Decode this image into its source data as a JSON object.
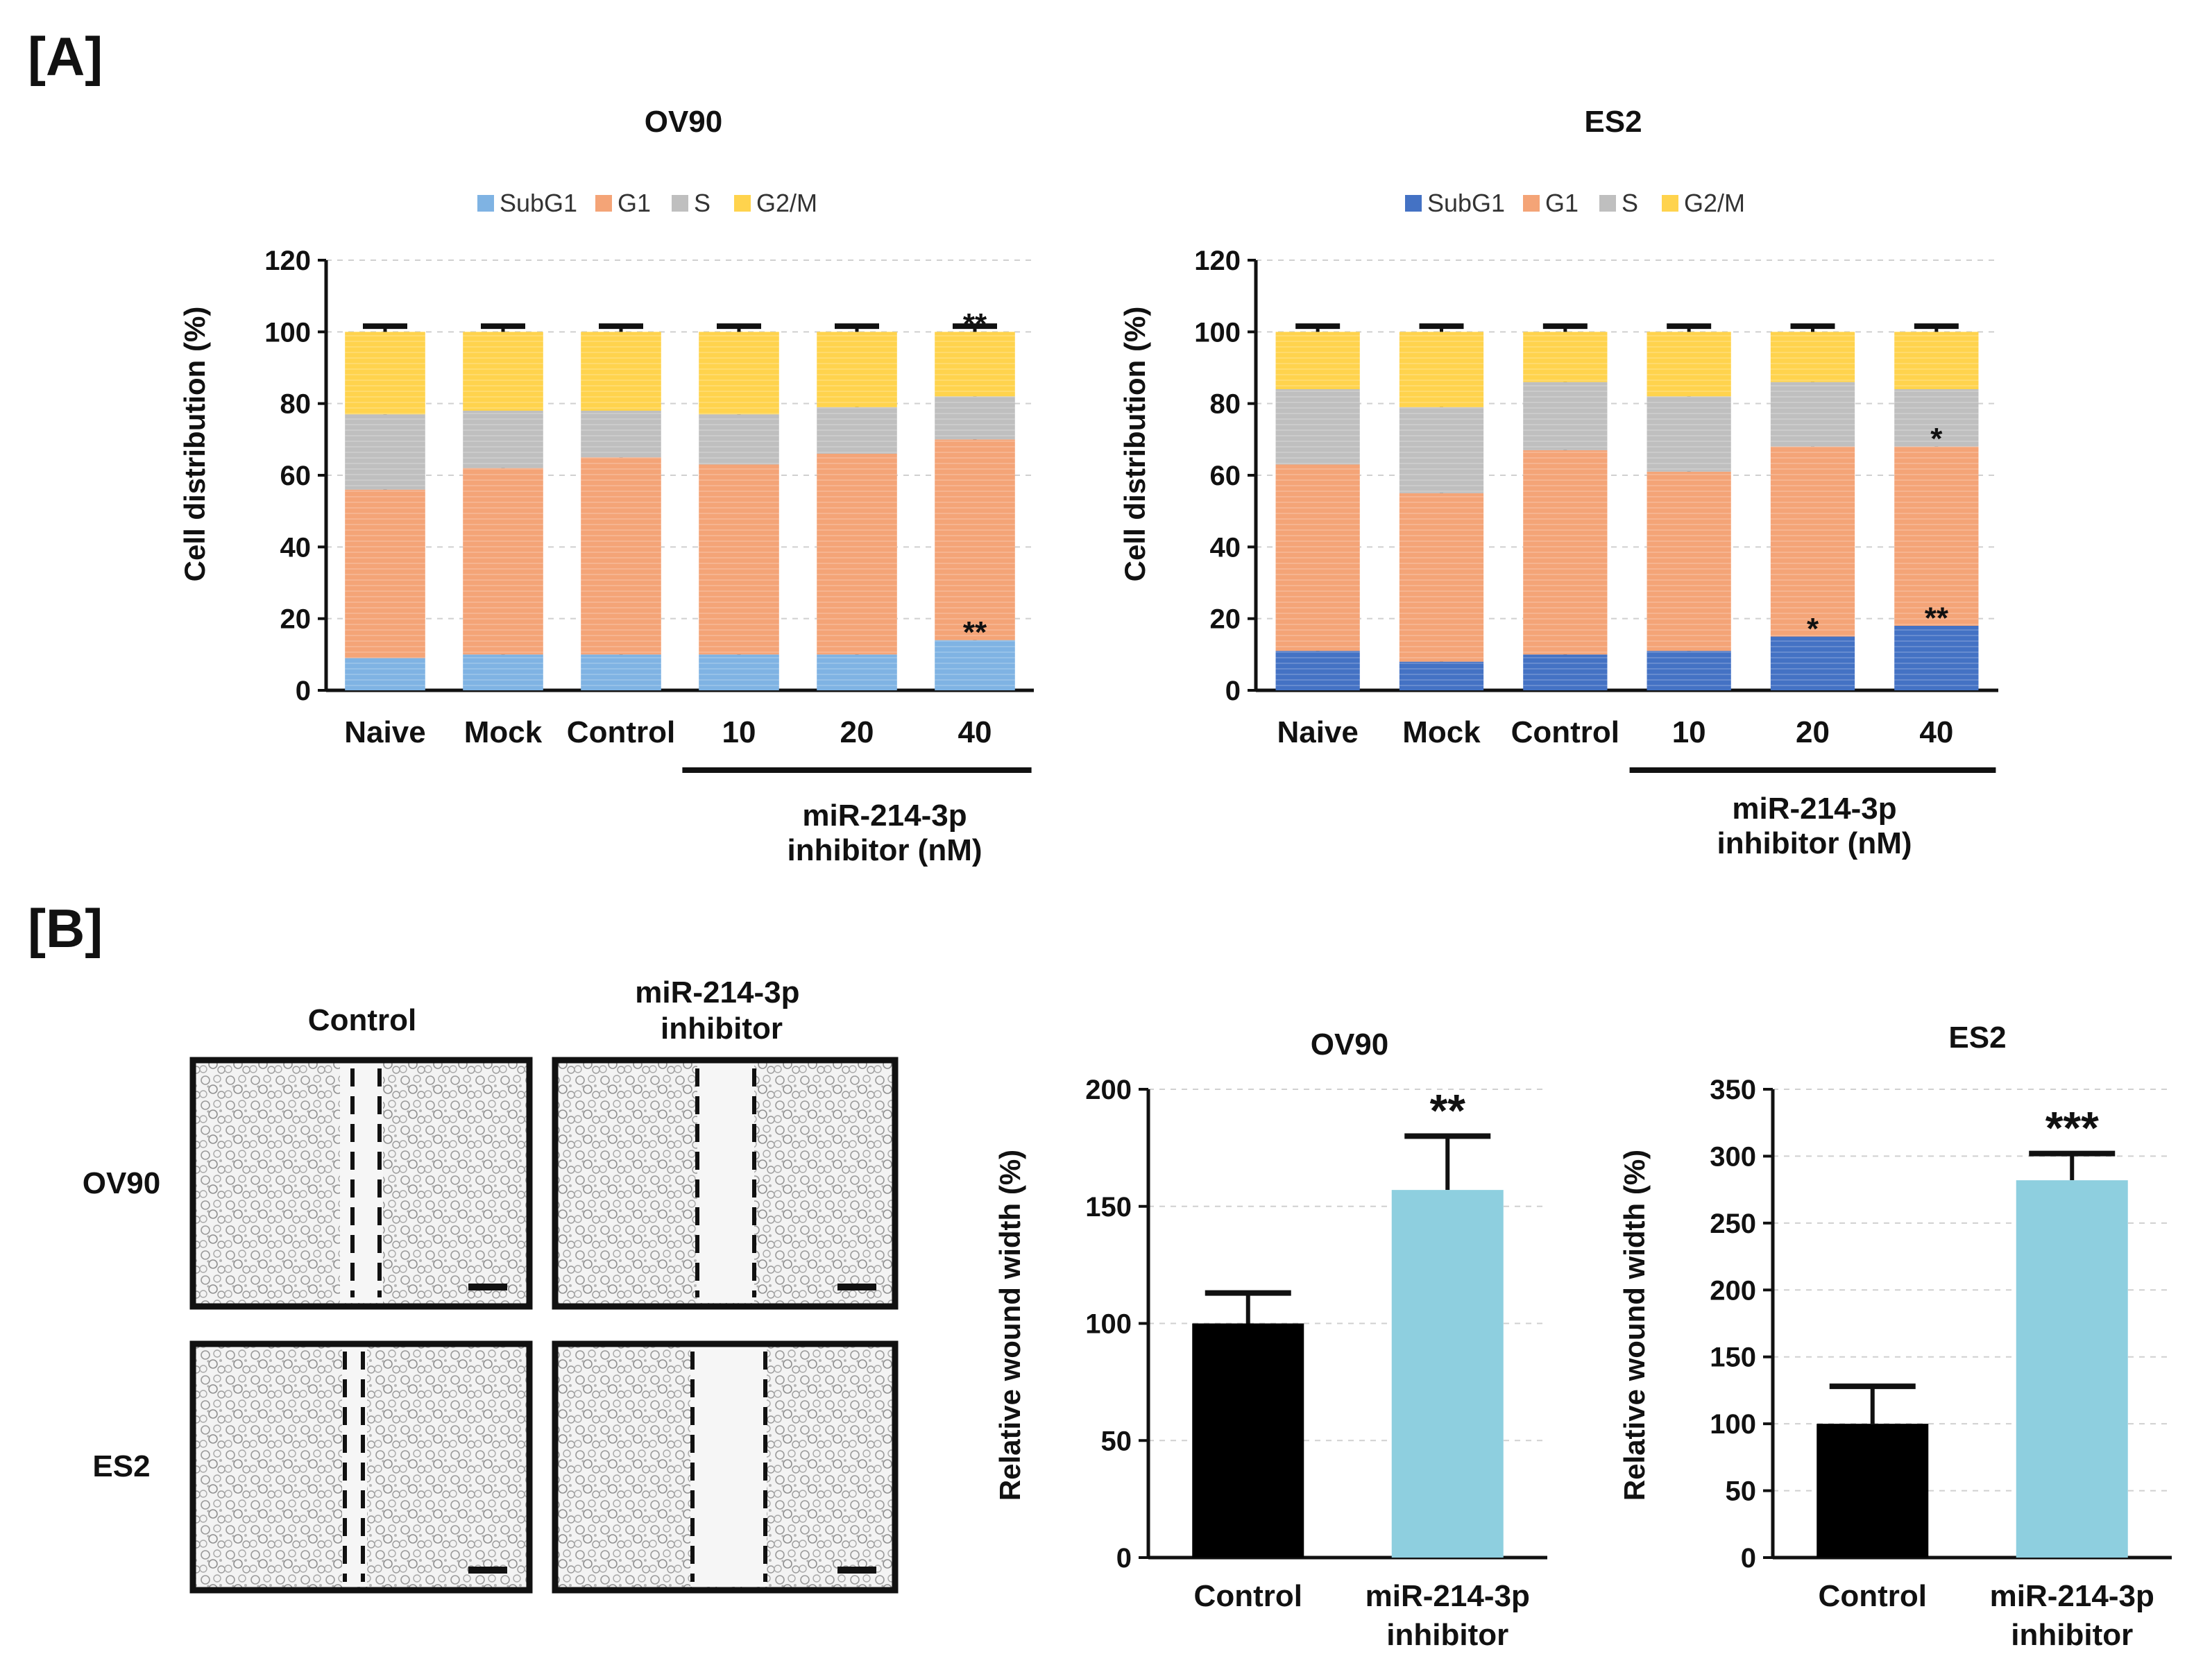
{
  "panels": {
    "A": "[A]",
    "B": "[B]"
  },
  "colors": {
    "subg1_ov90": "#7fb3e3",
    "subg1_es2": "#4472c4",
    "g1": "#f4a477",
    "s": "#bfbfbf",
    "g2m": "#ffd34d",
    "control_bar": "#000000",
    "inhibitor_bar": "#8ecfdf"
  },
  "chart_data": [
    {
      "type": "bar",
      "stacked": true,
      "title": "OV90",
      "ylabel": "Cell distribution (%)",
      "ylim": [
        0,
        120
      ],
      "yticks": [
        "0",
        "20",
        "40",
        "60",
        "80",
        "100",
        "120"
      ],
      "categories": [
        "Naive",
        "Mock",
        "Control",
        "10",
        "20",
        "40"
      ],
      "group_label_line1": "miR-214-3p",
      "group_label_line2": "inhibitor (nM)",
      "legend": [
        "SubG1",
        "G1",
        "S",
        "G2/M"
      ],
      "series": [
        {
          "name": "SubG1",
          "values": [
            9,
            10,
            10,
            10,
            10,
            14
          ]
        },
        {
          "name": "G1",
          "values": [
            47,
            52,
            55,
            53,
            56,
            56
          ]
        },
        {
          "name": "S",
          "values": [
            21,
            16,
            13,
            14,
            13,
            12
          ]
        },
        {
          "name": "G2/M",
          "values": [
            23,
            22,
            22,
            23,
            21,
            18
          ]
        }
      ],
      "annotations": [
        {
          "category": "40",
          "level": 100,
          "text": "**"
        },
        {
          "category": "40",
          "level": 14,
          "text": "**"
        }
      ]
    },
    {
      "type": "bar",
      "stacked": true,
      "title": "ES2",
      "ylabel": "Cell distribution (%)",
      "ylim": [
        0,
        120
      ],
      "yticks": [
        "0",
        "20",
        "40",
        "60",
        "80",
        "100",
        "120"
      ],
      "categories": [
        "Naive",
        "Mock",
        "Control",
        "10",
        "20",
        "40"
      ],
      "group_label_line1": "miR-214-3p",
      "group_label_line2": "inhibitor (nM)",
      "legend": [
        "SubG1",
        "G1",
        "S",
        "G2/M"
      ],
      "series": [
        {
          "name": "SubG1",
          "values": [
            11,
            8,
            10,
            11,
            15,
            18
          ]
        },
        {
          "name": "G1",
          "values": [
            52,
            47,
            57,
            50,
            53,
            50
          ]
        },
        {
          "name": "S",
          "values": [
            21,
            24,
            19,
            21,
            18,
            16
          ]
        },
        {
          "name": "G2/M",
          "values": [
            16,
            21,
            14,
            18,
            14,
            16
          ]
        }
      ],
      "annotations": [
        {
          "category": "20",
          "level": 15,
          "text": "*"
        },
        {
          "category": "40",
          "level": 18,
          "text": "**"
        },
        {
          "category": "40",
          "level": 68,
          "text": "*"
        }
      ]
    },
    {
      "type": "bar",
      "title": "OV90",
      "ylabel": "Relative wound width (%)",
      "ylim": [
        0,
        200
      ],
      "yticks": [
        "0",
        "50",
        "100",
        "150",
        "200"
      ],
      "categories": [
        [
          "Control"
        ],
        [
          "miR-214-3p",
          "inhibitor"
        ]
      ],
      "values": [
        100,
        157
      ],
      "errors": [
        13,
        23
      ],
      "annotations": [
        {
          "index": 1,
          "text": "**"
        }
      ]
    },
    {
      "type": "bar",
      "title": "ES2",
      "ylabel": "Relative wound width (%)",
      "ylim": [
        0,
        350
      ],
      "yticks": [
        "0",
        "50",
        "100",
        "150",
        "200",
        "250",
        "300",
        "350"
      ],
      "categories": [
        [
          "Control"
        ],
        [
          "miR-214-3p",
          "inhibitor"
        ]
      ],
      "values": [
        100,
        282
      ],
      "errors": [
        28,
        20
      ],
      "annotations": [
        {
          "index": 1,
          "text": "***"
        }
      ]
    }
  ],
  "micrographs": {
    "column_labels": [
      "Control",
      "miR-214-3p inhibitor"
    ],
    "row_labels": [
      "OV90",
      "ES2"
    ]
  }
}
